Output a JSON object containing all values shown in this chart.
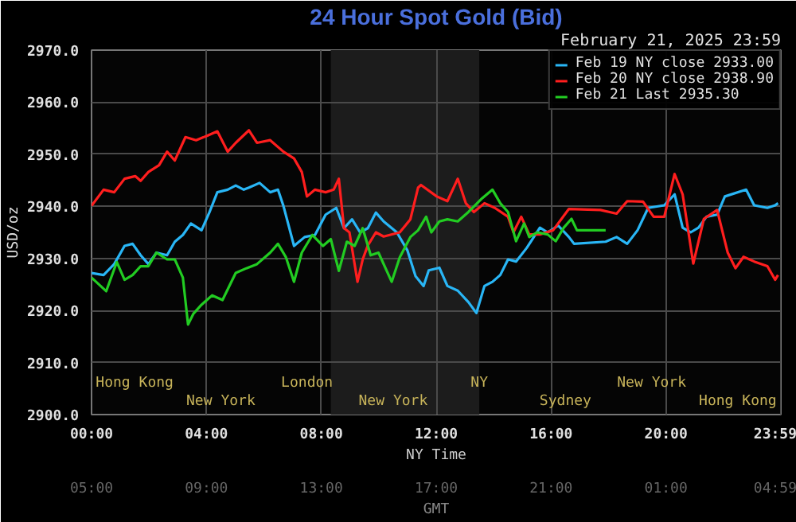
{
  "chart_data": {
    "type": "line",
    "title": "24 Hour Spot Gold (Bid)",
    "subtitle": "February 21, 2025 23:59",
    "ylabel": "USD/oz",
    "xlabel": "NY Time",
    "x2label": "GMT",
    "xlim": [
      0,
      24
    ],
    "xticks": [
      {
        "value": 0,
        "label": "00:00"
      },
      {
        "value": 4,
        "label": "04:00"
      },
      {
        "value": 8,
        "label": "08:00"
      },
      {
        "value": 12,
        "label": "12:00"
      },
      {
        "value": 16,
        "label": "16:00"
      },
      {
        "value": 20,
        "label": "20:00"
      },
      {
        "value": 23.983,
        "label": "23:59"
      }
    ],
    "x2lim": [
      "2025-02-21T05:00",
      "2025-02-22T05:00"
    ],
    "x2ticks": [
      {
        "value": "2025-02-21T05:00",
        "label": "05:00"
      },
      {
        "value": "2025-02-21T09:00",
        "label": "09:00"
      },
      {
        "value": "2025-02-21T13:00",
        "label": "13:00"
      },
      {
        "value": "2025-02-21T17:00",
        "label": "17:00"
      },
      {
        "value": "2025-02-21T21:00",
        "label": "21:00"
      },
      {
        "value": "2025-02-22T01:00",
        "label": "01:00"
      },
      {
        "value": "2025-02-22T04:59",
        "label": "04:59"
      }
    ],
    "ylim": [
      2900,
      2970
    ],
    "yticks": [
      {
        "value": 2900,
        "label": "2900.0"
      },
      {
        "value": 2910,
        "label": "2910.0"
      },
      {
        "value": 2920,
        "label": "2920.0"
      },
      {
        "value": 2930,
        "label": "2930.0"
      },
      {
        "value": 2940,
        "label": "2940.0"
      },
      {
        "value": 2950,
        "label": "2950.0"
      },
      {
        "value": 2960,
        "label": "2960.0"
      },
      {
        "value": 2970,
        "label": "2970.0"
      }
    ],
    "grid": true,
    "legend": "top right",
    "bands": [
      {
        "axis": "x",
        "from": 8.33,
        "to": 13.5,
        "color": "#1c1c1c"
      }
    ],
    "annotations": [
      "Hong Kong",
      "New York",
      "London",
      "New York",
      "NY",
      "Sydney",
      "New York",
      "Hong Kong"
    ],
    "series": [
      {
        "name": "Feb 19 NY close 2933.00",
        "color": "#29b6f6",
        "x": [
          0.0,
          0.42,
          0.79,
          1.15,
          1.43,
          1.71,
          1.98,
          2.26,
          2.63,
          2.9,
          3.18,
          3.46,
          3.83,
          4.1,
          4.38,
          4.74,
          5.02,
          5.3,
          5.48,
          5.85,
          6.22,
          6.49,
          6.68,
          7.05,
          7.42,
          7.78,
          8.15,
          8.52,
          8.79,
          9.07,
          9.35,
          9.62,
          9.9,
          10.17,
          10.63,
          11.0,
          11.28,
          11.56,
          11.74,
          12.11,
          12.39,
          12.75,
          13.12,
          13.4,
          13.68,
          13.96,
          14.23,
          14.5,
          14.78,
          15.15,
          15.61,
          15.88,
          16.25,
          16.62,
          16.8,
          17.9,
          18.28,
          18.65,
          19.01,
          19.38,
          19.94,
          20.3,
          20.58,
          20.86,
          21.13,
          21.41,
          21.78,
          22.05,
          22.79,
          23.07,
          23.53,
          23.8,
          23.9
        ],
        "values": [
          2927.2,
          2926.8,
          2928.9,
          2932.4,
          2932.8,
          2930.6,
          2928.9,
          2931.1,
          2930.6,
          2933.2,
          2934.5,
          2936.7,
          2935.4,
          2938.8,
          2942.7,
          2943.2,
          2944.0,
          2943.2,
          2943.6,
          2944.5,
          2942.7,
          2943.2,
          2940.1,
          2932.4,
          2934.1,
          2934.5,
          2938.4,
          2939.7,
          2935.8,
          2937.5,
          2935.0,
          2935.8,
          2938.8,
          2937.1,
          2935.0,
          2931.5,
          2926.6,
          2924.7,
          2927.7,
          2928.2,
          2924.7,
          2923.8,
          2921.6,
          2919.5,
          2924.7,
          2925.5,
          2926.8,
          2929.8,
          2929.4,
          2932.0,
          2935.9,
          2935.0,
          2936.3,
          2934.1,
          2932.8,
          2933.2,
          2934.1,
          2932.8,
          2935.4,
          2939.7,
          2940.2,
          2942.3,
          2935.9,
          2935.0,
          2935.9,
          2938.0,
          2938.4,
          2941.9,
          2943.2,
          2940.2,
          2939.7,
          2940.2,
          2940.6
        ]
      },
      {
        "name": "Feb 20 NY close 2938.90",
        "color": "#ff1e1e",
        "x": [
          0.0,
          0.42,
          0.79,
          1.15,
          1.52,
          1.71,
          1.98,
          2.35,
          2.63,
          2.9,
          3.27,
          3.64,
          4.0,
          4.38,
          4.74,
          5.02,
          5.48,
          5.76,
          6.22,
          6.68,
          7.05,
          7.32,
          7.5,
          7.78,
          8.15,
          8.43,
          8.61,
          8.79,
          8.98,
          9.26,
          9.44,
          9.62,
          9.9,
          10.17,
          10.73,
          11.1,
          11.37,
          11.47,
          12.02,
          12.39,
          12.75,
          13.03,
          13.31,
          13.68,
          14.04,
          14.5,
          14.69,
          14.96,
          15.24,
          15.61,
          16.07,
          16.62,
          17.72,
          18.28,
          18.65,
          19.2,
          19.57,
          19.94,
          20.3,
          20.58,
          20.95,
          21.32,
          21.78,
          22.15,
          22.42,
          22.7,
          23.07,
          23.53,
          23.8,
          23.9
        ],
        "values": [
          2940.1,
          2943.2,
          2942.7,
          2945.3,
          2945.8,
          2944.9,
          2946.6,
          2947.9,
          2950.5,
          2948.8,
          2953.3,
          2952.7,
          2953.5,
          2954.4,
          2950.5,
          2952.2,
          2954.6,
          2952.2,
          2952.7,
          2950.5,
          2949.2,
          2946.6,
          2941.9,
          2943.2,
          2942.7,
          2943.2,
          2945.3,
          2935.8,
          2935.0,
          2925.5,
          2929.8,
          2932.5,
          2935.0,
          2934.2,
          2935.0,
          2937.5,
          2943.6,
          2944.1,
          2941.9,
          2941.0,
          2945.3,
          2940.6,
          2938.9,
          2940.6,
          2939.7,
          2938.0,
          2935.0,
          2938.0,
          2934.6,
          2934.6,
          2935.4,
          2939.5,
          2939.3,
          2938.6,
          2941.0,
          2940.9,
          2938.0,
          2938.0,
          2946.2,
          2942.3,
          2929.0,
          2937.6,
          2939.3,
          2931.1,
          2928.1,
          2930.3,
          2929.4,
          2928.5,
          2925.9,
          2926.8
        ]
      },
      {
        "name": "Feb 21 Last 2935.30",
        "color": "#22cc22",
        "x": [
          0.0,
          0.51,
          0.88,
          1.15,
          1.43,
          1.71,
          1.98,
          2.26,
          2.63,
          2.9,
          3.18,
          3.36,
          3.55,
          3.83,
          4.2,
          4.56,
          5.02,
          5.39,
          5.76,
          6.22,
          6.49,
          6.77,
          7.05,
          7.32,
          7.69,
          8.06,
          8.33,
          8.61,
          8.89,
          9.16,
          9.44,
          9.72,
          9.99,
          10.45,
          10.73,
          11.1,
          11.37,
          11.65,
          11.83,
          12.11,
          12.39,
          12.75,
          13.12,
          13.59,
          13.96,
          14.23,
          14.5,
          14.78,
          15.06,
          15.24,
          15.52,
          15.88,
          16.16,
          16.44,
          16.71,
          16.9,
          17.9
        ],
        "values": [
          2926.3,
          2923.7,
          2929.3,
          2925.9,
          2926.8,
          2928.5,
          2928.5,
          2931.1,
          2929.8,
          2929.8,
          2926.3,
          2917.3,
          2919.4,
          2921.1,
          2922.9,
          2922.0,
          2927.2,
          2928.1,
          2928.9,
          2931.1,
          2932.8,
          2930.2,
          2925.5,
          2931.1,
          2934.5,
          2932.4,
          2933.7,
          2927.6,
          2933.2,
          2932.4,
          2935.8,
          2930.6,
          2931.1,
          2925.5,
          2930.2,
          2934.1,
          2935.4,
          2938.0,
          2935.0,
          2937.1,
          2937.5,
          2937.1,
          2938.9,
          2941.5,
          2943.2,
          2940.6,
          2938.9,
          2933.3,
          2936.7,
          2934.1,
          2935.0,
          2934.6,
          2933.3,
          2935.9,
          2937.6,
          2935.4,
          2935.4
        ]
      }
    ]
  }
}
